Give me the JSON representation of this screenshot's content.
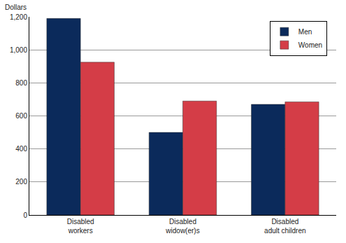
{
  "chart_data": {
    "type": "bar",
    "y_label": "Dollars",
    "categories": [
      "Disabled workers",
      "Disabled widow(er)s",
      "Disabled adult children"
    ],
    "series": [
      {
        "name": "Men",
        "color": "#0b2a5b",
        "values": [
          1190,
          500,
          670
        ]
      },
      {
        "name": "Women",
        "color": "#d43d47",
        "values": [
          925,
          690,
          685
        ]
      }
    ],
    "ylim": [
      0,
      1200
    ],
    "yticks": [
      0,
      200,
      400,
      600,
      800,
      {
        "value": 1000,
        "label": "1,000"
      },
      {
        "value": 1200,
        "label": "1,200"
      }
    ],
    "grid": true,
    "legend": "upper right"
  }
}
